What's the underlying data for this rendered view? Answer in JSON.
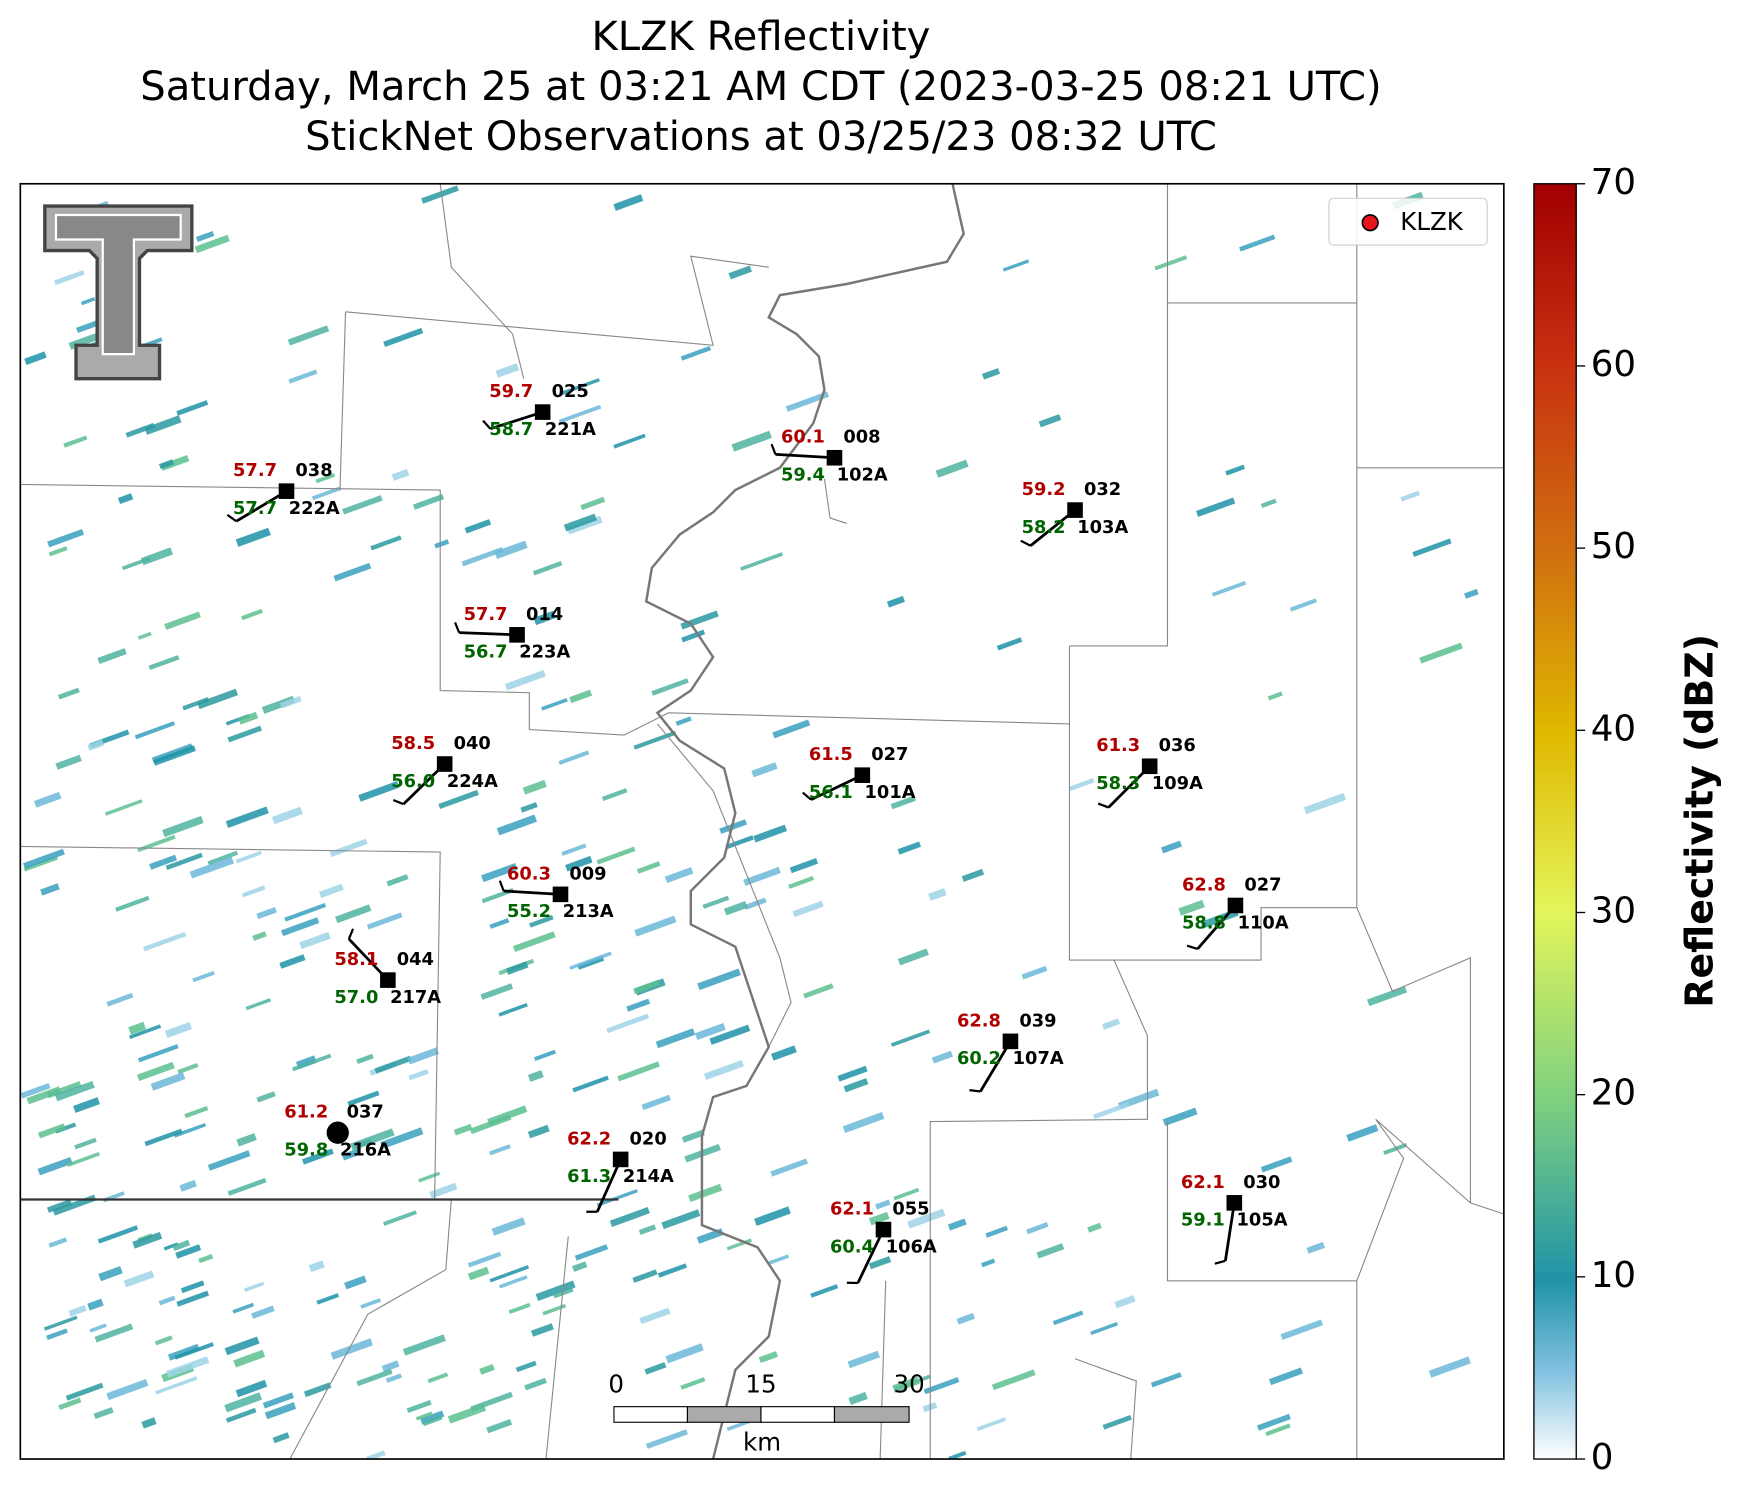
{
  "title": {
    "line1": "KLZK Reflectivity",
    "line2": "Saturday, March 25 at 03:21 AM CDT (2023-03-25 08:21 UTC)",
    "line3": "StickNet Observations at 03/25/23 08:32 UTC"
  },
  "legend": {
    "label": "KLZK",
    "color": "#e8141b"
  },
  "colorbar": {
    "label": "Reflectivity (dBZ)",
    "lim": [
      0,
      70
    ],
    "ticks": [
      0,
      10,
      20,
      30,
      40,
      50,
      60,
      70
    ]
  },
  "scale_bar": {
    "ticks": [
      "0",
      "15",
      "30"
    ],
    "unit": "km"
  },
  "stations": [
    {
      "id": "221A",
      "temperature": "59.7",
      "dewpoint": "58.7",
      "gust": "025"
    },
    {
      "id": "102A",
      "temperature": "60.1",
      "dewpoint": "59.4",
      "gust": "008"
    },
    {
      "id": "222A",
      "temperature": "57.7",
      "dewpoint": "57.7",
      "gust": "038"
    },
    {
      "id": "103A",
      "temperature": "59.2",
      "dewpoint": "58.2",
      "gust": "032"
    },
    {
      "id": "223A",
      "temperature": "57.7",
      "dewpoint": "56.7",
      "gust": "014"
    },
    {
      "id": "224A",
      "temperature": "58.5",
      "dewpoint": "56.0",
      "gust": "040"
    },
    {
      "id": "101A",
      "temperature": "61.5",
      "dewpoint": "56.1",
      "gust": "027"
    },
    {
      "id": "109A",
      "temperature": "61.3",
      "dewpoint": "58.3",
      "gust": "036"
    },
    {
      "id": "213A",
      "temperature": "60.3",
      "dewpoint": "55.2",
      "gust": "009"
    },
    {
      "id": "110A",
      "temperature": "62.8",
      "dewpoint": "58.8",
      "gust": "027"
    },
    {
      "id": "217A",
      "temperature": "58.1",
      "dewpoint": "57.0",
      "gust": "044"
    },
    {
      "id": "107A",
      "temperature": "62.8",
      "dewpoint": "60.2",
      "gust": "039"
    },
    {
      "id": "216A",
      "temperature": "61.2",
      "dewpoint": "59.8",
      "gust": "037"
    },
    {
      "id": "214A",
      "temperature": "62.2",
      "dewpoint": "61.3",
      "gust": "020"
    },
    {
      "id": "106A",
      "temperature": "62.1",
      "dewpoint": "60.4",
      "gust": "055"
    },
    {
      "id": "105A",
      "temperature": "62.1",
      "dewpoint": "59.1",
      "gust": "030"
    }
  ]
}
